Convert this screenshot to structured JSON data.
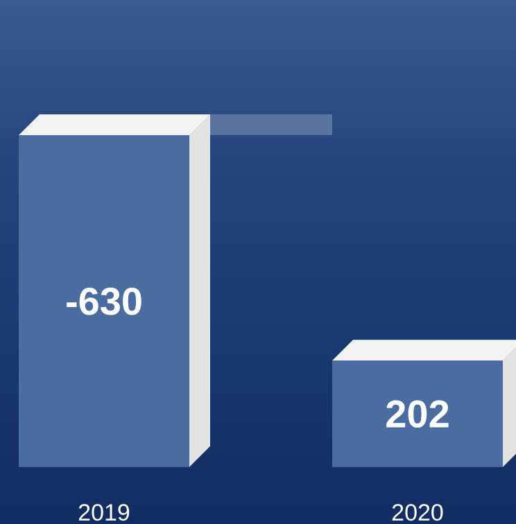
{
  "chart_data": {
    "type": "bar",
    "subtype": "waterfall",
    "categories": [
      "2019",
      "2020"
    ],
    "values": [
      -630,
      202
    ],
    "data_labels": [
      "-630",
      "202"
    ],
    "title": "",
    "xlabel": "",
    "ylabel": "",
    "grid": false,
    "legend": "none",
    "colors": {
      "bar_front": "#4a6ca0",
      "bar_top": "#f2f2f2",
      "bar_side": "#e3e3e3",
      "connector": "#6f86ad",
      "text": "#ffffff",
      "background_top": "#3a5a90",
      "background_bottom": "#112c62"
    }
  }
}
